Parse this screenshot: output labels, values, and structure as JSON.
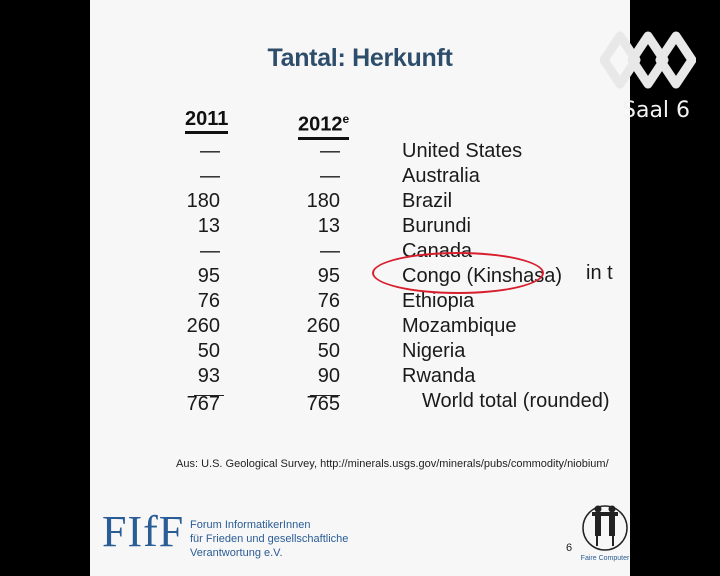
{
  "slide": {
    "title": "Tantal: Herkunft",
    "columns": {
      "y2011": "2011",
      "y2012": "2012",
      "y2012_sup": "e"
    },
    "rows": [
      {
        "country": "United States",
        "v2011": "—",
        "v2012": "—"
      },
      {
        "country": "Australia",
        "v2011": "—",
        "v2012": "—"
      },
      {
        "country": "Brazil",
        "v2011": "180",
        "v2012": "180"
      },
      {
        "country": "Burundi",
        "v2011": "13",
        "v2012": "13"
      },
      {
        "country": "Canada",
        "v2011": "—",
        "v2012": "—"
      },
      {
        "country": "Congo (Kinshasa)",
        "v2011": "95",
        "v2012": "95"
      },
      {
        "country": "Ethiopia",
        "v2011": "76",
        "v2012": "76"
      },
      {
        "country": "Mozambique",
        "v2011": "260",
        "v2012": "260"
      },
      {
        "country": "Nigeria",
        "v2011": "50",
        "v2012": "50"
      },
      {
        "country": "Rwanda",
        "v2011": "93",
        "v2012": "90"
      }
    ],
    "total": {
      "label": "World total (rounded)",
      "v2011": "767",
      "v2012": "765"
    },
    "unit": "in t",
    "source": "Aus: U.S. Geological Survey, http://minerals.usgs.gov/minerals/pubs/commodity/niobium/",
    "org_logo": "FIfF",
    "org_lines": [
      "Forum InformatikerInnen",
      "für Frieden und gesellschaftliche",
      "Verantwortung e.V."
    ],
    "page_number": "6",
    "fc_logo_text": "Faire Computer"
  },
  "overlay": {
    "room": "Saal 6",
    "logo_icon": "event-logo-icon"
  },
  "colors": {
    "title": "#2e4d6b",
    "highlight": "#d81e2c",
    "org": "#2a5c96"
  }
}
